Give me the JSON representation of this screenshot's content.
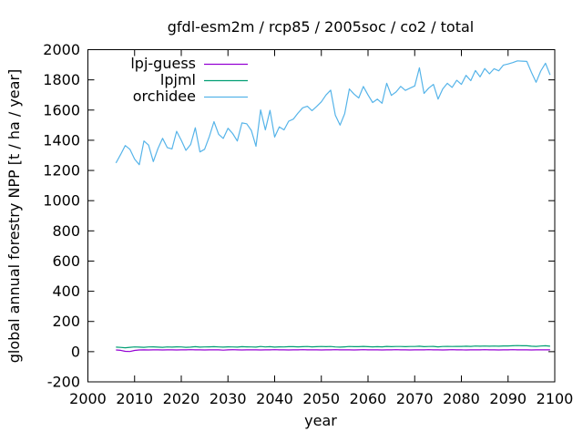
{
  "chart_data": {
    "type": "line",
    "title": "gfdl-esm2m / rcp85 / 2005soc / co2 / total",
    "xlabel": "year",
    "ylabel": "global annual forestry NPP [t / ha / year]",
    "xlim": [
      2000,
      2100
    ],
    "ylim": [
      -200,
      2000
    ],
    "xticks": [
      2000,
      2010,
      2020,
      2030,
      2040,
      2050,
      2060,
      2070,
      2080,
      2090,
      2100
    ],
    "yticks": [
      -200,
      0,
      200,
      400,
      600,
      800,
      1000,
      1200,
      1400,
      1600,
      1800,
      2000
    ],
    "grid": false,
    "legend_position": "top-left",
    "x_start": 2006,
    "x_step": 1,
    "series": [
      {
        "name": "lpj-guess",
        "color": "#9400d3",
        "values": [
          11,
          9,
          2,
          1,
          8,
          11,
          12,
          11,
          12,
          12,
          11,
          12,
          12,
          11,
          12,
          12,
          13,
          12,
          12,
          11,
          12,
          12,
          12,
          10,
          12,
          13,
          12,
          11,
          12,
          12,
          12,
          11,
          12,
          12,
          13,
          12,
          12,
          11,
          12,
          12,
          13,
          12,
          12,
          12,
          11,
          12,
          12,
          13,
          12,
          12,
          12,
          11,
          12,
          13,
          12,
          12,
          12,
          11,
          12,
          12,
          13,
          12,
          12,
          11,
          12,
          12,
          12,
          13,
          12,
          12,
          11,
          12,
          13,
          12,
          12,
          11,
          12,
          12,
          12,
          13,
          12,
          12,
          11,
          12,
          12,
          13,
          12,
          12,
          12,
          11,
          12,
          12,
          12,
          12
        ]
      },
      {
        "name": "lpjml",
        "color": "#009e73",
        "values": [
          30,
          28,
          26,
          29,
          31,
          30,
          29,
          31,
          32,
          30,
          29,
          31,
          30,
          32,
          31,
          29,
          30,
          33,
          30,
          31,
          32,
          33,
          31,
          30,
          32,
          31,
          30,
          33,
          32,
          31,
          30,
          34,
          31,
          33,
          30,
          32,
          31,
          33,
          33,
          32,
          33,
          34,
          32,
          33,
          34,
          33,
          34,
          31,
          30,
          32,
          34,
          33,
          33,
          35,
          33,
          32,
          33,
          32,
          35,
          33,
          34,
          34,
          33,
          34,
          34,
          36,
          33,
          34,
          35,
          32,
          34,
          35,
          34,
          35,
          35,
          36,
          35,
          37,
          36,
          37,
          36,
          37,
          36,
          38,
          38,
          39,
          40,
          39,
          39,
          36,
          35,
          37,
          39,
          36
        ]
      },
      {
        "name": "orchidee",
        "color": "#56b4e9",
        "values": [
          1250,
          1305,
          1365,
          1340,
          1275,
          1238,
          1395,
          1368,
          1259,
          1345,
          1413,
          1352,
          1343,
          1459,
          1400,
          1333,
          1372,
          1483,
          1323,
          1340,
          1425,
          1523,
          1440,
          1412,
          1479,
          1445,
          1395,
          1515,
          1509,
          1465,
          1360,
          1601,
          1469,
          1598,
          1421,
          1489,
          1469,
          1526,
          1540,
          1580,
          1615,
          1625,
          1596,
          1624,
          1655,
          1700,
          1732,
          1566,
          1500,
          1576,
          1740,
          1706,
          1680,
          1756,
          1700,
          1650,
          1672,
          1645,
          1777,
          1697,
          1720,
          1757,
          1730,
          1745,
          1760,
          1880,
          1710,
          1745,
          1770,
          1673,
          1740,
          1777,
          1750,
          1797,
          1770,
          1830,
          1795,
          1862,
          1820,
          1875,
          1840,
          1874,
          1860,
          1898,
          1905,
          1914,
          1926,
          1924,
          1922,
          1850,
          1784,
          1858,
          1910,
          1833
        ]
      }
    ]
  },
  "colors": {
    "background": "#ffffff",
    "border": "#000000",
    "text": "#000000",
    "lpj_guess": "#9400d3",
    "lpjml": "#009e73",
    "orchidee": "#56b4e9"
  }
}
